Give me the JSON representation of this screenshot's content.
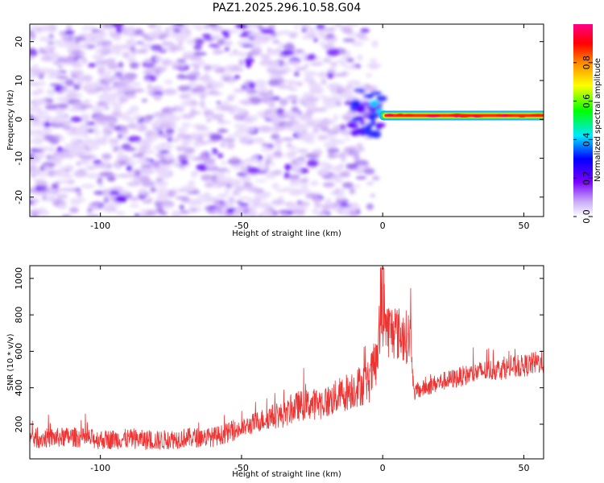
{
  "title": "PAZ1.2025.296.10.58.G04",
  "chart_data": [
    {
      "type": "heatmap",
      "name": "spectrogram",
      "xlabel": "Height of straight line (km)",
      "ylabel": "Frequency (Hz)",
      "xlim": [
        -125,
        57
      ],
      "ylim": [
        -25,
        24.5
      ],
      "xticks": [
        -100,
        -50,
        0,
        50
      ],
      "yticks": [
        -20,
        -10,
        0,
        10,
        20
      ],
      "signal_line": {
        "x_start": 0,
        "x_end": 57,
        "frequency_hz": 1,
        "normalized_amplitude": 0.95
      },
      "noise_region": {
        "x_start": -125,
        "x_end": -3,
        "typical_normalized_amplitude": [
          0.0,
          0.2
        ]
      },
      "colorbar": {
        "label": "Normalized spectral amplitude",
        "range": [
          0.0,
          1.0
        ],
        "ticks": [
          "0.0",
          "0.2",
          "0.4",
          "0.6",
          "0.8"
        ],
        "tick_values": [
          0.0,
          0.2,
          0.4,
          0.6,
          0.8
        ],
        "colormap": "rainbow (white-violet-blue-cyan-green-yellow-red-magenta)"
      }
    },
    {
      "type": "line",
      "name": "snr",
      "xlabel": "Height of straight line (km)",
      "ylabel": "SNR (10 * v/v)",
      "xlim": [
        -125,
        57
      ],
      "ylim": [
        10,
        1070
      ],
      "xticks": [
        -100,
        -50,
        0,
        50
      ],
      "yticks": [
        200,
        400,
        600,
        800,
        1000
      ],
      "color": "#ee3333",
      "series": [
        {
          "name": "SNR",
          "x": [
            -125,
            -110,
            -100,
            -90,
            -80,
            -70,
            -60,
            -50,
            -45,
            -40,
            -35,
            -30,
            -25,
            -20,
            -15,
            -10,
            -5,
            -2,
            0,
            2,
            5,
            8,
            10,
            11,
            15,
            20,
            25,
            30,
            35,
            40,
            45,
            50,
            55,
            57
          ],
          "y": [
            120,
            130,
            115,
            120,
            110,
            125,
            130,
            175,
            210,
            240,
            250,
            300,
            310,
            320,
            360,
            400,
            430,
            550,
            780,
            720,
            700,
            680,
            680,
            370,
            400,
            430,
            450,
            470,
            490,
            500,
            510,
            520,
            540,
            540
          ]
        }
      ]
    }
  ]
}
